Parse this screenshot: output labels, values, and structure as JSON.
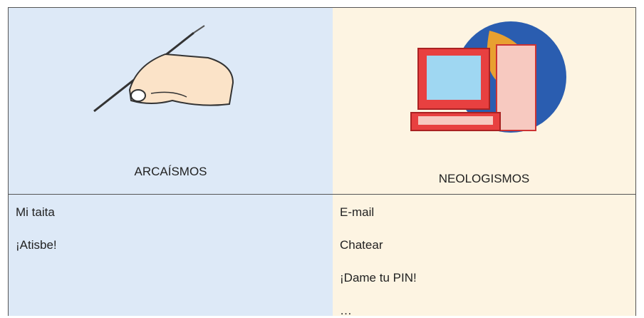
{
  "table": {
    "columns": [
      {
        "title": "ARCAÍSMOS",
        "items": [
          "Mi taita",
          "¡Atisbe!"
        ]
      },
      {
        "title": "NEOLOGISMOS",
        "items": [
          "E-mail",
          "Chatear",
          "¡Dame tu PIN!",
          "…"
        ]
      }
    ]
  }
}
